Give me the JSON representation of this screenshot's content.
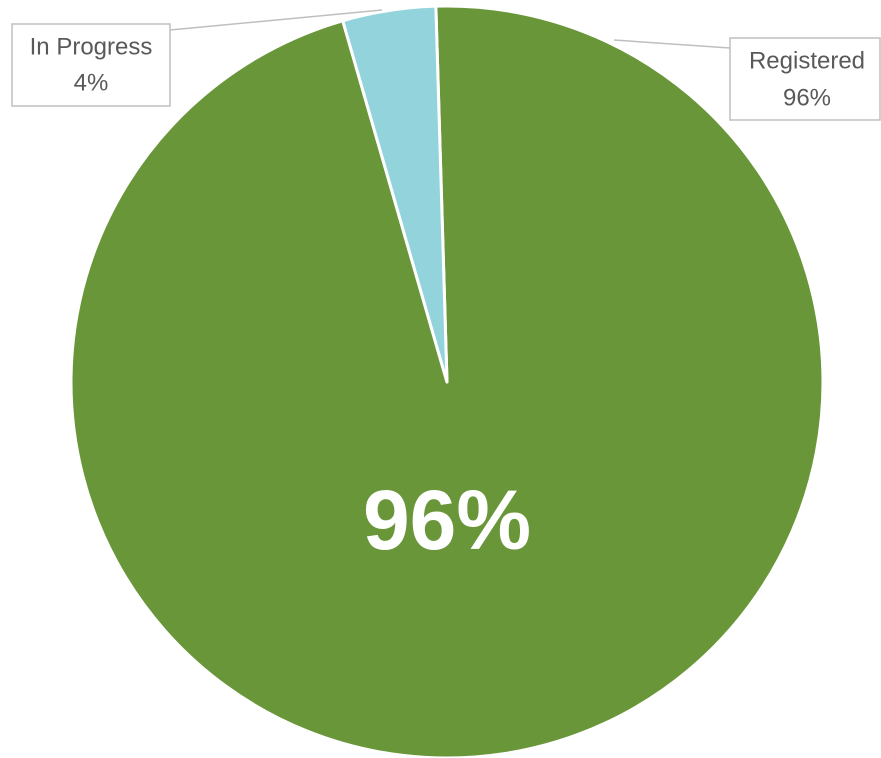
{
  "chart_data": {
    "type": "pie",
    "categories": [
      "Registered",
      "In Progress"
    ],
    "values": [
      96,
      4
    ],
    "value_labels": [
      "96%",
      "4%"
    ],
    "colors": [
      "#6a963a",
      "#93d4dc"
    ]
  }
}
